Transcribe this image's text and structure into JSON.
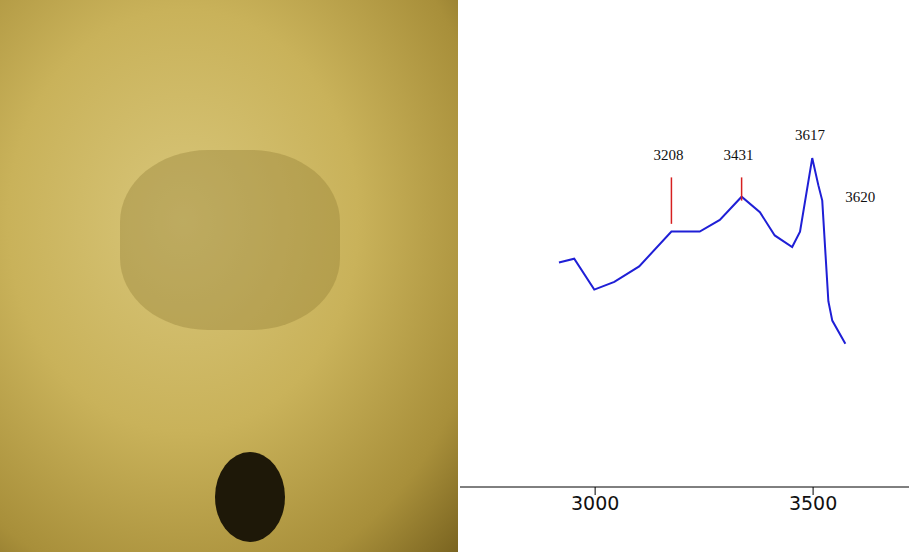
{
  "chart_data": {
    "type": "line",
    "x": [
      2917,
      2952,
      2998,
      3044,
      3101,
      3175,
      3240,
      3286,
      3336,
      3378,
      3412,
      3452,
      3470,
      3498,
      3512,
      3521,
      3535,
      3544,
      3574
    ],
    "values": [
      58,
      59,
      51,
      53,
      57,
      66,
      66,
      69,
      75,
      71,
      65,
      62,
      66,
      85,
      78,
      74,
      48,
      43,
      37
    ],
    "color": "#1f1fd6",
    "xlim": [
      2690,
      3720
    ],
    "xticks": [
      3000,
      3500
    ],
    "ylim": [
      0,
      100
    ],
    "tick_labels": "x",
    "grid": false,
    "annotations": [
      {
        "label": "3208",
        "x": 3175,
        "y": 86,
        "line": [
          68,
          80
        ],
        "color": "#d62020"
      },
      {
        "label": "3431",
        "x": 3336,
        "y": 86,
        "line": [
          74,
          80
        ],
        "color": "#d62020"
      },
      {
        "label": "3617",
        "x": 3500,
        "y": 91
      },
      {
        "label": "3620",
        "x": 3615,
        "y": 75
      }
    ]
  }
}
